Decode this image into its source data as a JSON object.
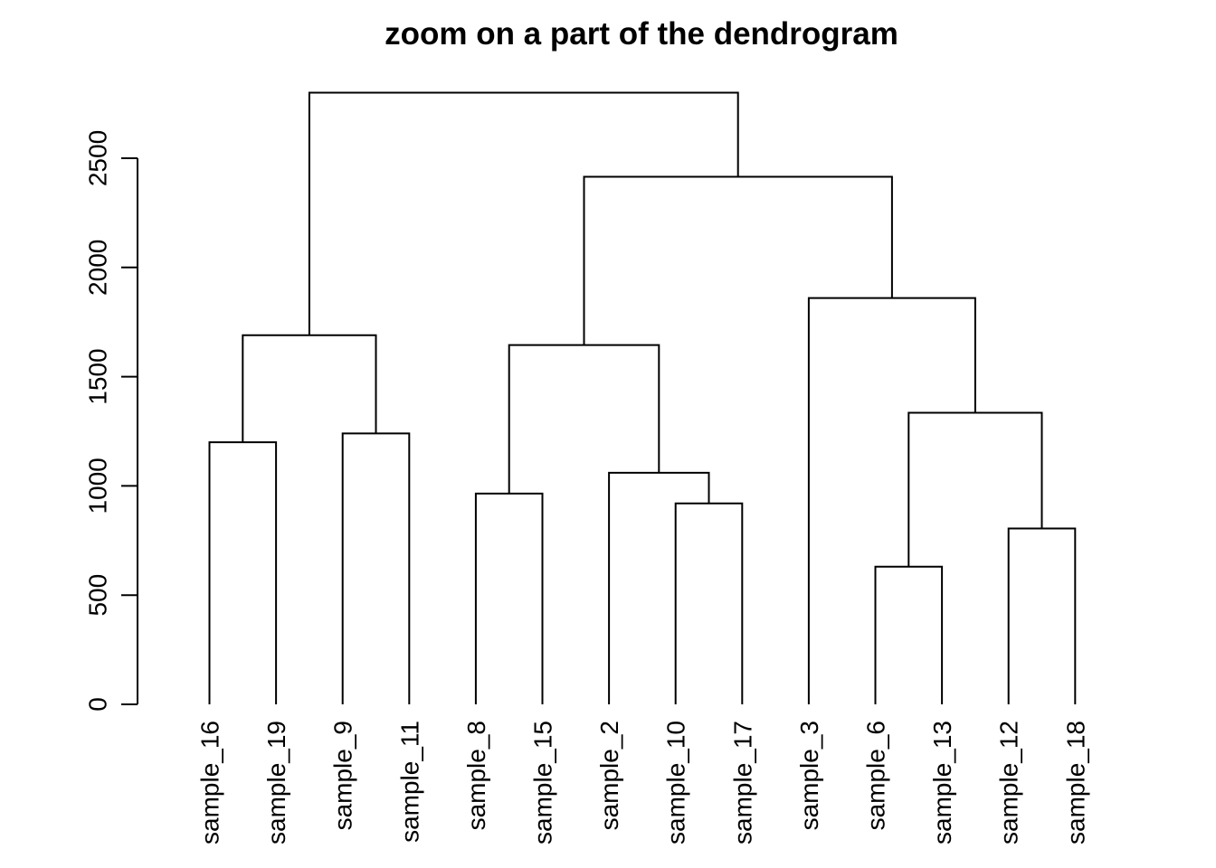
{
  "chart_data": {
    "type": "dendrogram",
    "title": "zoom on a part of the dendrogram",
    "xlabel": "",
    "ylabel": "",
    "ylim": [
      0,
      2800
    ],
    "yticks": [
      0,
      500,
      1000,
      1500,
      2000,
      2500
    ],
    "leaves": [
      "sample_16",
      "sample_19",
      "sample_9",
      "sample_11",
      "sample_8",
      "sample_15",
      "sample_2",
      "sample_10",
      "sample_17",
      "sample_3",
      "sample_6",
      "sample_13",
      "sample_12",
      "sample_18"
    ],
    "merges": [
      {
        "left": "L0",
        "right": "L1",
        "height": 1200
      },
      {
        "left": "L2",
        "right": "L3",
        "height": 1240
      },
      {
        "left": "M0",
        "right": "M1",
        "height": 1690
      },
      {
        "left": "L4",
        "right": "L5",
        "height": 965
      },
      {
        "left": "L7",
        "right": "L8",
        "height": 920
      },
      {
        "left": "L6",
        "right": "M4",
        "height": 1060
      },
      {
        "left": "M3",
        "right": "M5",
        "height": 1645
      },
      {
        "left": "L10",
        "right": "L11",
        "height": 630
      },
      {
        "left": "L12",
        "right": "L13",
        "height": 805
      },
      {
        "left": "M7",
        "right": "M8",
        "height": 1335
      },
      {
        "left": "L9",
        "right": "M9",
        "height": 1860
      },
      {
        "left": "M6",
        "right": "M10",
        "height": 2415
      },
      {
        "left": "M2",
        "right": "M11",
        "height": 2800
      }
    ]
  }
}
